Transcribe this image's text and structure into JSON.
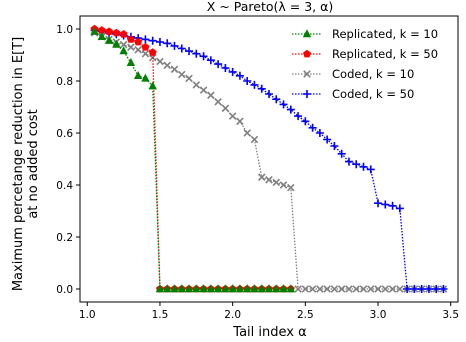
{
  "chart_data": {
    "type": "line",
    "title": "X ~ Pareto(λ = 3, α)",
    "xlabel": "Tail index α",
    "ylabel_line1": "Maximum percetange reduction in E[T]",
    "ylabel_line2": "at no added cost",
    "xlim": [
      0.95,
      3.55
    ],
    "ylim": [
      -0.05,
      1.05
    ],
    "xticks": [
      "1.0",
      "1.5",
      "2.0",
      "2.5",
      "3.0",
      "3.5"
    ],
    "yticks": [
      "0.0",
      "0.2",
      "0.4",
      "0.6",
      "0.8",
      "1.0"
    ],
    "legend_position": "top-right",
    "grid": false,
    "series": [
      {
        "name": "Replicated, k = 10",
        "color": "#008000",
        "marker": "triangle",
        "points": [
          [
            1.05,
            0.99
          ],
          [
            1.1,
            0.97
          ],
          [
            1.15,
            0.955
          ],
          [
            1.2,
            0.94
          ],
          [
            1.25,
            0.915
          ],
          [
            1.3,
            0.87
          ],
          [
            1.35,
            0.82
          ],
          [
            1.4,
            0.81
          ],
          [
            1.45,
            0.78
          ],
          [
            1.5,
            0.0
          ],
          [
            1.55,
            0.0
          ],
          [
            1.6,
            0.0
          ],
          [
            1.65,
            0.0
          ],
          [
            1.7,
            0.0
          ],
          [
            1.75,
            0.0
          ],
          [
            1.8,
            0.0
          ],
          [
            1.85,
            0.0
          ],
          [
            1.9,
            0.0
          ],
          [
            1.95,
            0.0
          ],
          [
            2.0,
            0.0
          ],
          [
            2.05,
            0.0
          ],
          [
            2.1,
            0.0
          ],
          [
            2.15,
            0.0
          ],
          [
            2.2,
            0.0
          ],
          [
            2.25,
            0.0
          ],
          [
            2.3,
            0.0
          ],
          [
            2.35,
            0.0
          ],
          [
            2.4,
            0.0
          ]
        ]
      },
      {
        "name": "Replicated, k = 50",
        "color": "#ff0000",
        "marker": "pentagon",
        "points": [
          [
            1.05,
            1.0
          ],
          [
            1.1,
            0.995
          ],
          [
            1.15,
            0.99
          ],
          [
            1.2,
            0.985
          ],
          [
            1.25,
            0.98
          ],
          [
            1.3,
            0.96
          ],
          [
            1.35,
            0.95
          ],
          [
            1.4,
            0.93
          ],
          [
            1.45,
            0.91
          ],
          [
            1.5,
            0.0
          ],
          [
            1.55,
            0.0
          ],
          [
            1.6,
            0.0
          ],
          [
            1.65,
            0.0
          ],
          [
            1.7,
            0.0
          ],
          [
            1.75,
            0.0
          ],
          [
            1.8,
            0.0
          ],
          [
            1.85,
            0.0
          ],
          [
            1.9,
            0.0
          ],
          [
            1.95,
            0.0
          ],
          [
            2.0,
            0.0
          ],
          [
            2.05,
            0.0
          ],
          [
            2.1,
            0.0
          ],
          [
            2.15,
            0.0
          ],
          [
            2.2,
            0.0
          ],
          [
            2.25,
            0.0
          ],
          [
            2.3,
            0.0
          ],
          [
            2.35,
            0.0
          ],
          [
            2.4,
            0.0
          ]
        ]
      },
      {
        "name": "Coded, k = 10",
        "color": "#808080",
        "marker": "x",
        "points": [
          [
            1.05,
            0.985
          ],
          [
            1.1,
            0.97
          ],
          [
            1.15,
            0.96
          ],
          [
            1.2,
            0.95
          ],
          [
            1.25,
            0.94
          ],
          [
            1.3,
            0.93
          ],
          [
            1.35,
            0.92
          ],
          [
            1.4,
            0.905
          ],
          [
            1.45,
            0.89
          ],
          [
            1.5,
            0.875
          ],
          [
            1.55,
            0.86
          ],
          [
            1.6,
            0.845
          ],
          [
            1.65,
            0.825
          ],
          [
            1.7,
            0.81
          ],
          [
            1.75,
            0.785
          ],
          [
            1.8,
            0.765
          ],
          [
            1.85,
            0.745
          ],
          [
            1.9,
            0.72
          ],
          [
            1.95,
            0.695
          ],
          [
            2.0,
            0.665
          ],
          [
            2.05,
            0.645
          ],
          [
            2.1,
            0.6
          ],
          [
            2.15,
            0.575
          ],
          [
            2.2,
            0.43
          ],
          [
            2.25,
            0.42
          ],
          [
            2.3,
            0.41
          ],
          [
            2.35,
            0.4
          ],
          [
            2.4,
            0.39
          ],
          [
            2.45,
            0.0
          ],
          [
            2.5,
            0.0
          ],
          [
            2.55,
            0.0
          ],
          [
            2.6,
            0.0
          ],
          [
            2.65,
            0.0
          ],
          [
            2.7,
            0.0
          ],
          [
            2.75,
            0.0
          ],
          [
            2.8,
            0.0
          ],
          [
            2.85,
            0.0
          ],
          [
            2.9,
            0.0
          ],
          [
            2.95,
            0.0
          ],
          [
            3.0,
            0.0
          ],
          [
            3.05,
            0.0
          ],
          [
            3.1,
            0.0
          ],
          [
            3.15,
            0.0
          ],
          [
            3.2,
            0.0
          ],
          [
            3.25,
            0.0
          ],
          [
            3.3,
            0.0
          ],
          [
            3.35,
            0.0
          ],
          [
            3.4,
            0.0
          ],
          [
            3.45,
            0.0
          ]
        ]
      },
      {
        "name": "Coded, k = 50",
        "color": "#0000ff",
        "marker": "plus",
        "points": [
          [
            1.05,
            0.995
          ],
          [
            1.1,
            0.99
          ],
          [
            1.15,
            0.985
          ],
          [
            1.2,
            0.98
          ],
          [
            1.25,
            0.975
          ],
          [
            1.3,
            0.97
          ],
          [
            1.35,
            0.965
          ],
          [
            1.4,
            0.96
          ],
          [
            1.45,
            0.955
          ],
          [
            1.5,
            0.95
          ],
          [
            1.55,
            0.945
          ],
          [
            1.6,
            0.935
          ],
          [
            1.65,
            0.925
          ],
          [
            1.7,
            0.915
          ],
          [
            1.75,
            0.905
          ],
          [
            1.8,
            0.895
          ],
          [
            1.85,
            0.88
          ],
          [
            1.9,
            0.865
          ],
          [
            1.95,
            0.85
          ],
          [
            2.0,
            0.835
          ],
          [
            2.05,
            0.82
          ],
          [
            2.1,
            0.8
          ],
          [
            2.15,
            0.785
          ],
          [
            2.2,
            0.77
          ],
          [
            2.25,
            0.75
          ],
          [
            2.3,
            0.73
          ],
          [
            2.35,
            0.71
          ],
          [
            2.4,
            0.69
          ],
          [
            2.45,
            0.665
          ],
          [
            2.5,
            0.645
          ],
          [
            2.55,
            0.62
          ],
          [
            2.6,
            0.6
          ],
          [
            2.65,
            0.575
          ],
          [
            2.7,
            0.55
          ],
          [
            2.75,
            0.52
          ],
          [
            2.8,
            0.49
          ],
          [
            2.85,
            0.48
          ],
          [
            2.9,
            0.47
          ],
          [
            2.95,
            0.46
          ],
          [
            3.0,
            0.33
          ],
          [
            3.05,
            0.325
          ],
          [
            3.1,
            0.32
          ],
          [
            3.15,
            0.31
          ],
          [
            3.2,
            0.0
          ],
          [
            3.25,
            0.0
          ],
          [
            3.3,
            0.0
          ],
          [
            3.35,
            0.0
          ],
          [
            3.4,
            0.0
          ],
          [
            3.45,
            0.0
          ]
        ]
      }
    ]
  }
}
